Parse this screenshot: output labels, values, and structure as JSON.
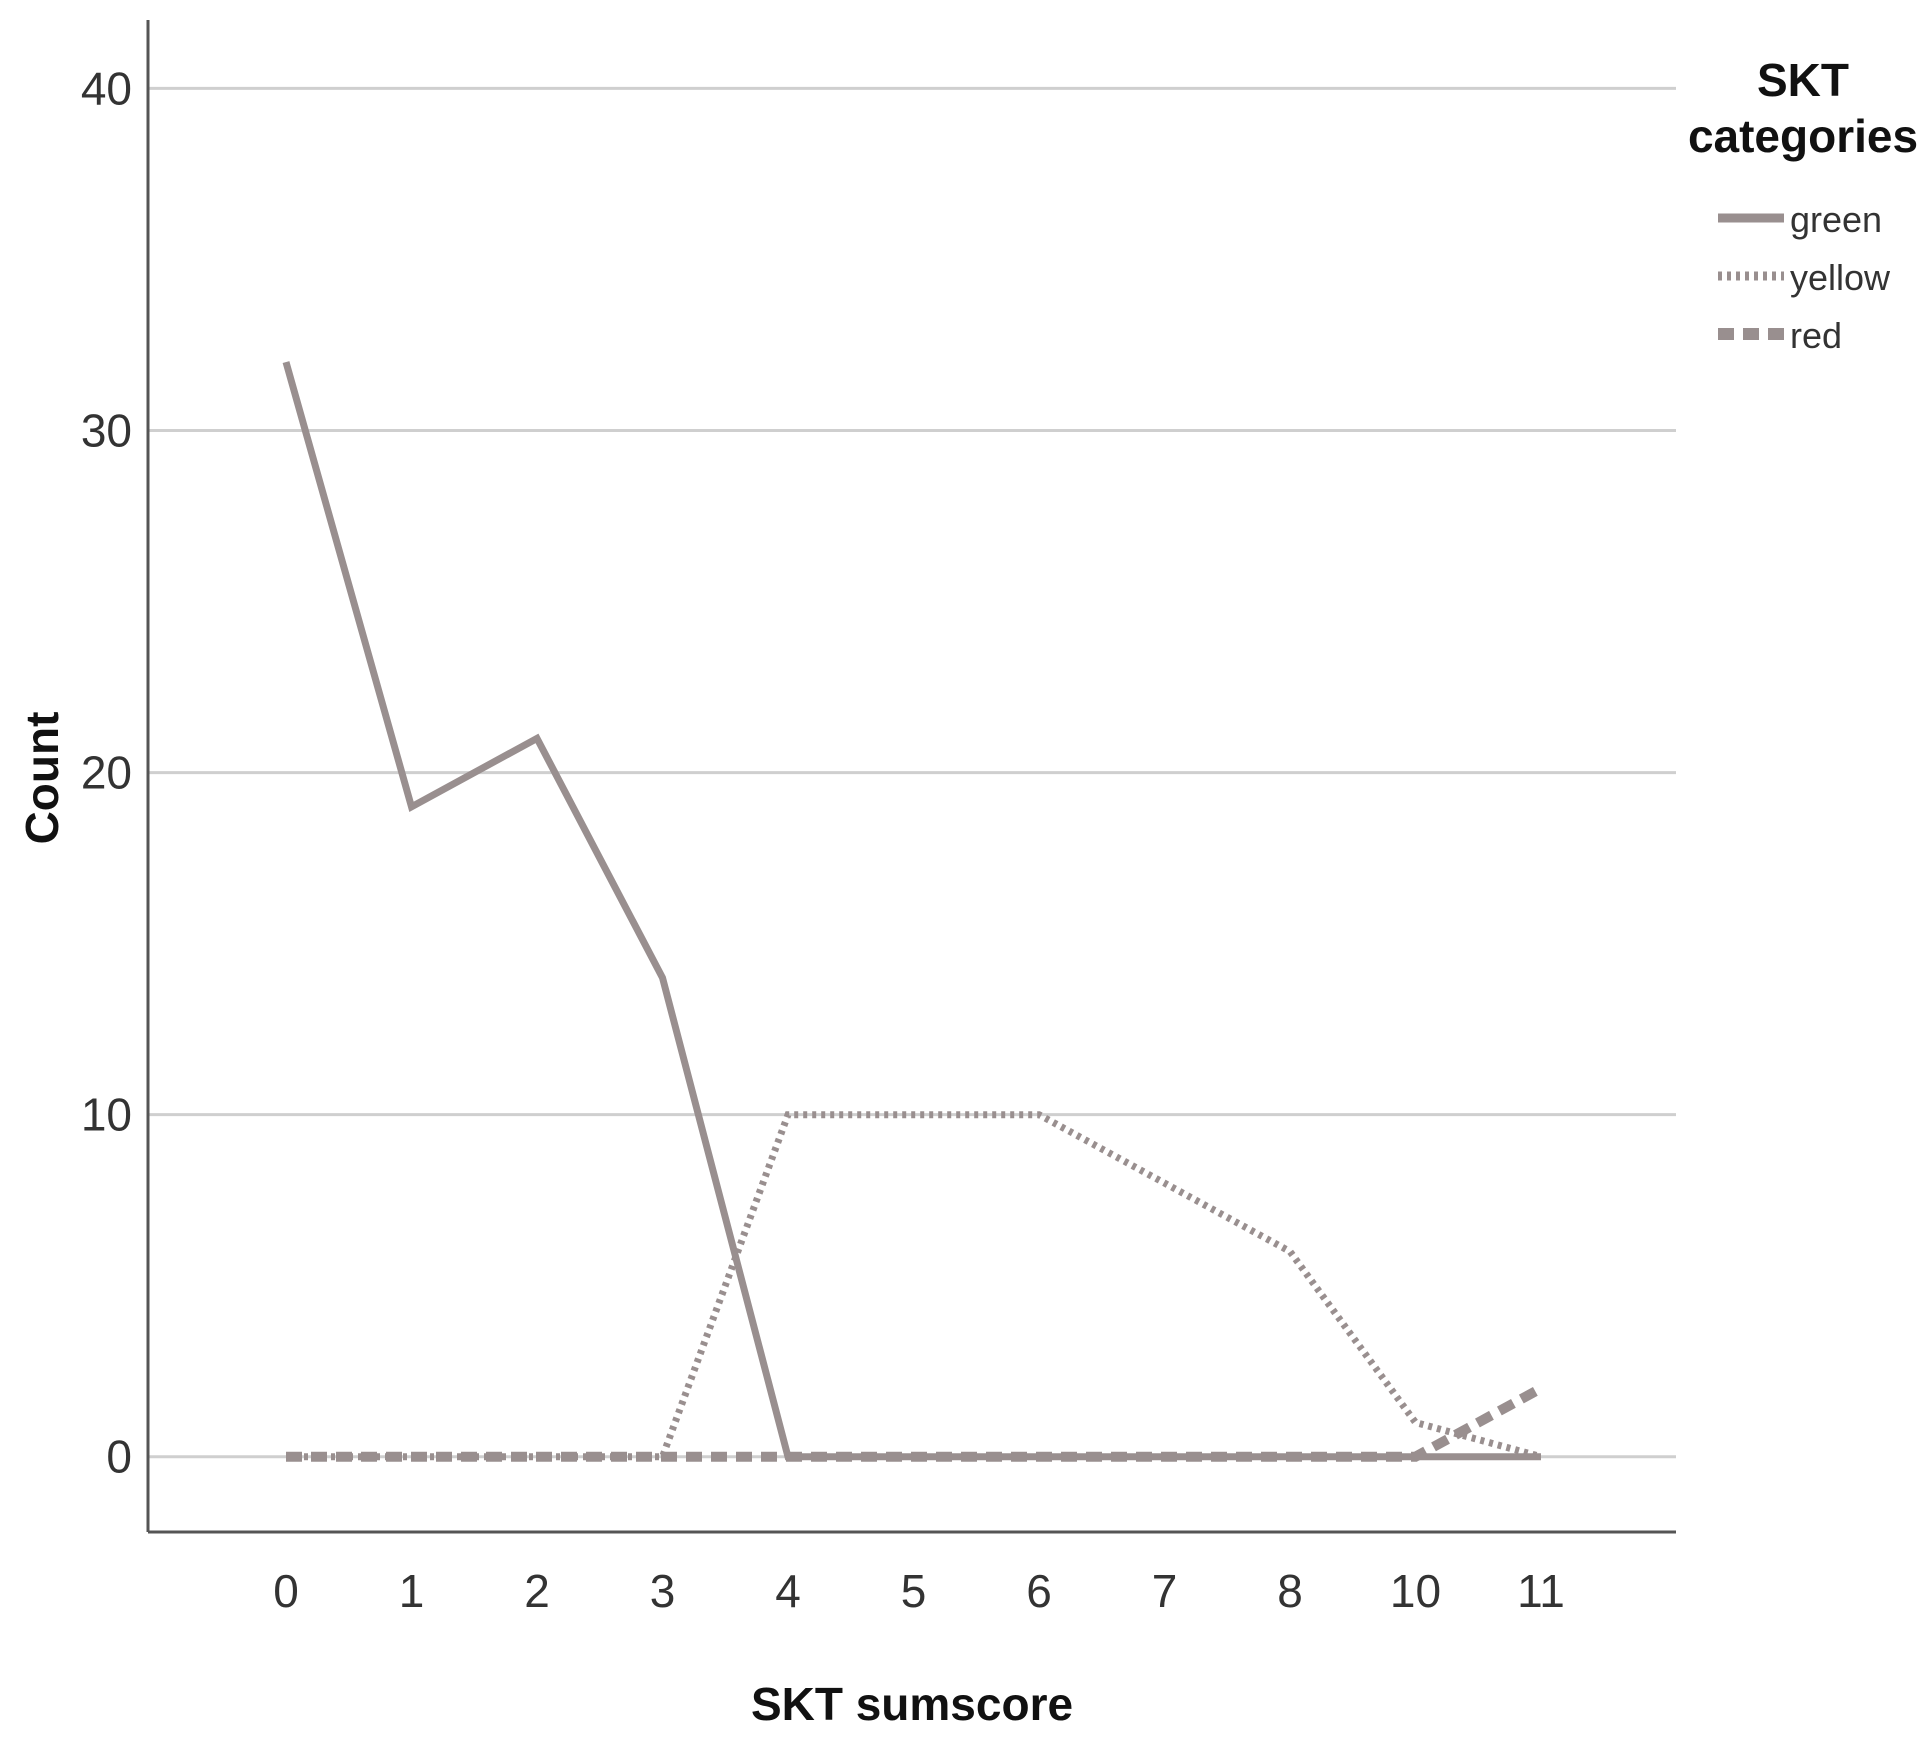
{
  "chart_data": {
    "type": "line",
    "title": "",
    "xlabel": "SKT sumscore",
    "ylabel": "Count",
    "categories": [
      "0",
      "1",
      "2",
      "3",
      "4",
      "5",
      "6",
      "7",
      "8",
      "10",
      "11"
    ],
    "ylim": [
      -2.2,
      42
    ],
    "yticks": [
      0,
      10,
      20,
      30,
      40
    ],
    "grid": true,
    "legend": {
      "title_lines": [
        "SKT",
        "categories"
      ],
      "placement": "right"
    },
    "series": [
      {
        "name": "green",
        "style": "solid",
        "values": [
          32,
          19,
          21,
          14,
          0,
          0,
          0,
          0,
          0,
          0,
          0
        ]
      },
      {
        "name": "yellow",
        "style": "dotted",
        "values": [
          0,
          0,
          0,
          0,
          10,
          10,
          10,
          8,
          6,
          1,
          0
        ]
      },
      {
        "name": "red",
        "style": "dashed",
        "values": [
          0,
          0,
          0,
          0,
          0,
          0,
          0,
          0,
          0,
          0,
          2
        ]
      }
    ],
    "colors": {
      "line": "#998f8f",
      "grid": "#cfcfcf",
      "axis": "#555555"
    }
  }
}
